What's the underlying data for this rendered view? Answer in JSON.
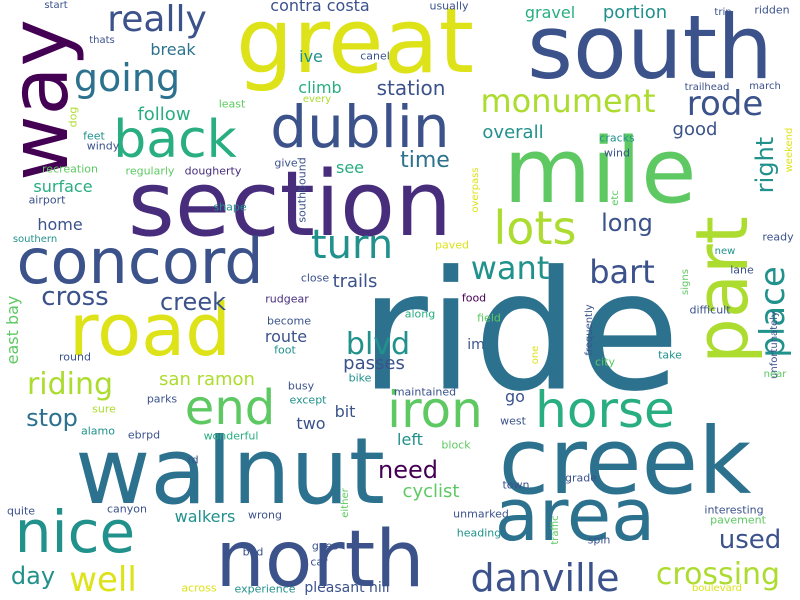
{
  "palette": {
    "deep_purple": "#440154",
    "indigo": "#472d7b",
    "slate_blue": "#3b528b",
    "blue": "#2c728e",
    "teal": "#21918c",
    "green_teal": "#28ae80",
    "green": "#5ec962",
    "lime": "#addc30",
    "yellow": "#dde318",
    "background": "#ffffff"
  },
  "words": [
    {
      "id": "ride",
      "text": "ride",
      "color": "#2c728e"
    },
    {
      "id": "walnut",
      "text": "walnut",
      "color": "#2c728e"
    },
    {
      "id": "creek_big",
      "text": "creek",
      "color": "#2c728e"
    },
    {
      "id": "section",
      "text": "section",
      "color": "#472d7b"
    },
    {
      "id": "mile",
      "text": "mile",
      "color": "#5ec962"
    },
    {
      "id": "great",
      "text": "great",
      "color": "#dde318"
    },
    {
      "id": "south",
      "text": "south",
      "color": "#3b528b"
    },
    {
      "id": "way",
      "text": "way",
      "color": "#440154"
    },
    {
      "id": "north",
      "text": "north",
      "color": "#3b528b"
    },
    {
      "id": "area",
      "text": "area",
      "color": "#2c728e"
    },
    {
      "id": "part",
      "text": "part",
      "color": "#addc30"
    },
    {
      "id": "road",
      "text": "road",
      "color": "#dde318"
    },
    {
      "id": "concord",
      "text": "concord",
      "color": "#3b528b"
    },
    {
      "id": "dublin",
      "text": "dublin",
      "color": "#3b528b"
    },
    {
      "id": "back",
      "text": "back",
      "color": "#28ae80"
    },
    {
      "id": "nice",
      "text": "nice",
      "color": "#21918c"
    },
    {
      "id": "iron",
      "text": "iron",
      "color": "#5ec962"
    },
    {
      "id": "horse",
      "text": "horse",
      "color": "#28ae80"
    },
    {
      "id": "end",
      "text": "end",
      "color": "#5ec962"
    },
    {
      "id": "danville",
      "text": "danville",
      "color": "#3b528b"
    },
    {
      "id": "lots",
      "text": "lots",
      "color": "#addc30"
    },
    {
      "id": "turn",
      "text": "turn",
      "color": "#21918c"
    },
    {
      "id": "going",
      "text": "going",
      "color": "#2c728e"
    },
    {
      "id": "really",
      "text": "really",
      "color": "#3b528b"
    },
    {
      "id": "monument",
      "text": "monument",
      "color": "#addc30"
    },
    {
      "id": "rode",
      "text": "rode",
      "color": "#3b528b"
    },
    {
      "id": "place",
      "text": "place",
      "color": "#21918c"
    },
    {
      "id": "well",
      "text": "well",
      "color": "#dde318"
    },
    {
      "id": "crossing",
      "text": "crossing",
      "color": "#addc30"
    },
    {
      "id": "want",
      "text": "want",
      "color": "#21918c"
    },
    {
      "id": "bart",
      "text": "bart",
      "color": "#3b528b"
    },
    {
      "id": "blvd",
      "text": "blvd",
      "color": "#21918c"
    },
    {
      "id": "riding",
      "text": "riding",
      "color": "#addc30"
    },
    {
      "id": "cross",
      "text": "cross",
      "color": "#3b528b"
    },
    {
      "id": "creek_small",
      "text": "creek",
      "color": "#3b528b"
    },
    {
      "id": "stop",
      "text": "stop",
      "color": "#2c728e"
    },
    {
      "id": "day",
      "text": "day",
      "color": "#21918c"
    },
    {
      "id": "used",
      "text": "used",
      "color": "#3b528b"
    },
    {
      "id": "need",
      "text": "need",
      "color": "#440154"
    },
    {
      "id": "long",
      "text": "long",
      "color": "#3b528b"
    },
    {
      "id": "right",
      "text": "right",
      "color": "#21918c"
    },
    {
      "id": "time",
      "text": "time",
      "color": "#2c728e"
    },
    {
      "id": "contra_costa",
      "text": "contra costa",
      "color": "#3b528b"
    },
    {
      "id": "gravel",
      "text": "gravel",
      "color": "#28ae80"
    },
    {
      "id": "portion",
      "text": "portion",
      "color": "#21918c"
    },
    {
      "id": "station",
      "text": "station",
      "color": "#3b528b"
    },
    {
      "id": "good",
      "text": "good",
      "color": "#3b528b"
    },
    {
      "id": "overall",
      "text": "overall",
      "color": "#21918c"
    },
    {
      "id": "follow",
      "text": "follow",
      "color": "#28ae80"
    },
    {
      "id": "break",
      "text": "break",
      "color": "#2c728e"
    },
    {
      "id": "climb",
      "text": "climb",
      "color": "#28ae80"
    },
    {
      "id": "ive",
      "text": "ive",
      "color": "#21918c"
    },
    {
      "id": "san_ramon",
      "text": "san ramon",
      "color": "#addc30"
    },
    {
      "id": "passes",
      "text": "passes",
      "color": "#3b528b"
    },
    {
      "id": "cyclist",
      "text": "cyclist",
      "color": "#5ec962"
    },
    {
      "id": "walkers",
      "text": "walkers",
      "color": "#21918c"
    },
    {
      "id": "two",
      "text": "two",
      "color": "#3b528b"
    },
    {
      "id": "bit",
      "text": "bit",
      "color": "#3b528b"
    },
    {
      "id": "left",
      "text": "left",
      "color": "#21918c"
    },
    {
      "id": "trails",
      "text": "trails",
      "color": "#3b528b"
    },
    {
      "id": "route",
      "text": "route",
      "color": "#3b528b"
    },
    {
      "id": "home",
      "text": "home",
      "color": "#3b528b"
    },
    {
      "id": "surface",
      "text": "surface",
      "color": "#28ae80"
    },
    {
      "id": "im",
      "text": "im",
      "color": "#3b528b"
    },
    {
      "id": "go",
      "text": "go",
      "color": "#3b528b"
    },
    {
      "id": "see",
      "text": "see",
      "color": "#28ae80"
    },
    {
      "id": "east_bay",
      "text": "east bay",
      "color": "#5ec962"
    },
    {
      "id": "pleasant_hill",
      "text": "pleasant hill",
      "color": "#3b528b"
    },
    {
      "id": "start",
      "text": "start",
      "color": "#3b528b"
    },
    {
      "id": "thats",
      "text": "thats",
      "color": "#3b528b"
    },
    {
      "id": "usually",
      "text": "usually",
      "color": "#3b528b"
    },
    {
      "id": "trip",
      "text": "trip",
      "color": "#3b528b"
    },
    {
      "id": "ridden",
      "text": "ridden",
      "color": "#3b528b"
    },
    {
      "id": "canel",
      "text": "canel",
      "color": "#3b528b"
    },
    {
      "id": "least",
      "text": "least",
      "color": "#5ec962"
    },
    {
      "id": "every",
      "text": "every",
      "color": "#addc30"
    },
    {
      "id": "trailhead",
      "text": "trailhead",
      "color": "#3b528b"
    },
    {
      "id": "march",
      "text": "march",
      "color": "#3b528b"
    },
    {
      "id": "dog",
      "text": "dog",
      "color": "#addc30"
    },
    {
      "id": "feet",
      "text": "feet",
      "color": "#21918c"
    },
    {
      "id": "windy",
      "text": "windy",
      "color": "#3b528b"
    },
    {
      "id": "cracks",
      "text": "cracks",
      "color": "#21918c"
    },
    {
      "id": "wind",
      "text": "wind",
      "color": "#3b528b"
    },
    {
      "id": "weekend",
      "text": "weekend",
      "color": "#dde318"
    },
    {
      "id": "recreation",
      "text": "recreation",
      "color": "#5ec962"
    },
    {
      "id": "regularly",
      "text": "regularly",
      "color": "#5ec962"
    },
    {
      "id": "dougherty",
      "text": "dougherty",
      "color": "#472d7b"
    },
    {
      "id": "give",
      "text": "give",
      "color": "#3b528b"
    },
    {
      "id": "southbound",
      "text": "southbound",
      "color": "#3b528b"
    },
    {
      "id": "overpass",
      "text": "overpass",
      "color": "#dde318"
    },
    {
      "id": "etc",
      "text": "etc",
      "color": "#5ec962"
    },
    {
      "id": "airport",
      "text": "airport",
      "color": "#3b528b"
    },
    {
      "id": "shape",
      "text": "shape",
      "color": "#21918c"
    },
    {
      "id": "southern",
      "text": "southern",
      "color": "#21918c"
    },
    {
      "id": "paved",
      "text": "paved",
      "color": "#dde318"
    },
    {
      "id": "new",
      "text": "new",
      "color": "#21918c"
    },
    {
      "id": "ready",
      "text": "ready",
      "color": "#3b528b"
    },
    {
      "id": "lane",
      "text": "lane",
      "color": "#3b528b"
    },
    {
      "id": "signs",
      "text": "signs",
      "color": "#5ec962"
    },
    {
      "id": "close",
      "text": "close",
      "color": "#3b528b"
    },
    {
      "id": "food",
      "text": "food",
      "color": "#440154"
    },
    {
      "id": "rudgear",
      "text": "rudgear",
      "color": "#472d7b"
    },
    {
      "id": "difficult",
      "text": "difficult",
      "color": "#3b528b"
    },
    {
      "id": "unfortunately",
      "text": "unfortunately",
      "color": "#3b528b"
    },
    {
      "id": "become",
      "text": "become",
      "color": "#3b528b"
    },
    {
      "id": "along",
      "text": "along",
      "color": "#28ae80"
    },
    {
      "id": "field",
      "text": "field",
      "color": "#5ec962"
    },
    {
      "id": "foot",
      "text": "foot",
      "color": "#21918c"
    },
    {
      "id": "frequently",
      "text": "frequently",
      "color": "#3b528b"
    },
    {
      "id": "one",
      "text": "one",
      "color": "#dde318"
    },
    {
      "id": "take",
      "text": "take",
      "color": "#21918c"
    },
    {
      "id": "round",
      "text": "round",
      "color": "#3b528b"
    },
    {
      "id": "busy",
      "text": "busy",
      "color": "#3b528b"
    },
    {
      "id": "bike",
      "text": "bike",
      "color": "#21918c"
    },
    {
      "id": "city",
      "text": "city",
      "color": "#5ec962"
    },
    {
      "id": "maintained",
      "text": "maintained",
      "color": "#3b528b"
    },
    {
      "id": "near",
      "text": "near",
      "color": "#5ec962"
    },
    {
      "id": "parks",
      "text": "parks",
      "color": "#3b528b"
    },
    {
      "id": "except",
      "text": "except",
      "color": "#21918c"
    },
    {
      "id": "sure",
      "text": "sure",
      "color": "#addc30"
    },
    {
      "id": "west",
      "text": "west",
      "color": "#3b528b"
    },
    {
      "id": "alamo",
      "text": "alamo",
      "color": "#21918c"
    },
    {
      "id": "ebrpd",
      "text": "ebrpd",
      "color": "#3b528b"
    },
    {
      "id": "wonderful",
      "text": "wonderful",
      "color": "#28ae80"
    },
    {
      "id": "block",
      "text": "block",
      "color": "#5ec962"
    },
    {
      "id": "rd",
      "text": "rd",
      "color": "#3b528b"
    },
    {
      "id": "either",
      "text": "either",
      "color": "#5ec962"
    },
    {
      "id": "town",
      "text": "town",
      "color": "#3b528b"
    },
    {
      "id": "grade",
      "text": "grade",
      "color": "#3b528b"
    },
    {
      "id": "quite",
      "text": "quite",
      "color": "#3b528b"
    },
    {
      "id": "canyon",
      "text": "canyon",
      "color": "#3b528b"
    },
    {
      "id": "wrong",
      "text": "wrong",
      "color": "#3b528b"
    },
    {
      "id": "unmarked",
      "text": "unmarked",
      "color": "#3b528b"
    },
    {
      "id": "traffic",
      "text": "traffic",
      "color": "#5ec962"
    },
    {
      "id": "interesting",
      "text": "interesting",
      "color": "#3b528b"
    },
    {
      "id": "pavement",
      "text": "pavement",
      "color": "#5ec962"
    },
    {
      "id": "heading",
      "text": "heading",
      "color": "#21918c"
    },
    {
      "id": "spin",
      "text": "spin",
      "color": "#3b528b"
    },
    {
      "id": "bad",
      "text": "bad",
      "color": "#3b528b"
    },
    {
      "id": "goes",
      "text": "goes",
      "color": "#3b528b"
    },
    {
      "id": "car",
      "text": "car",
      "color": "#3b528b"
    },
    {
      "id": "across",
      "text": "across",
      "color": "#dde318"
    },
    {
      "id": "experience",
      "text": "experience",
      "color": "#21918c"
    },
    {
      "id": "boulevard",
      "text": "boulevard",
      "color": "#dde318"
    }
  ]
}
